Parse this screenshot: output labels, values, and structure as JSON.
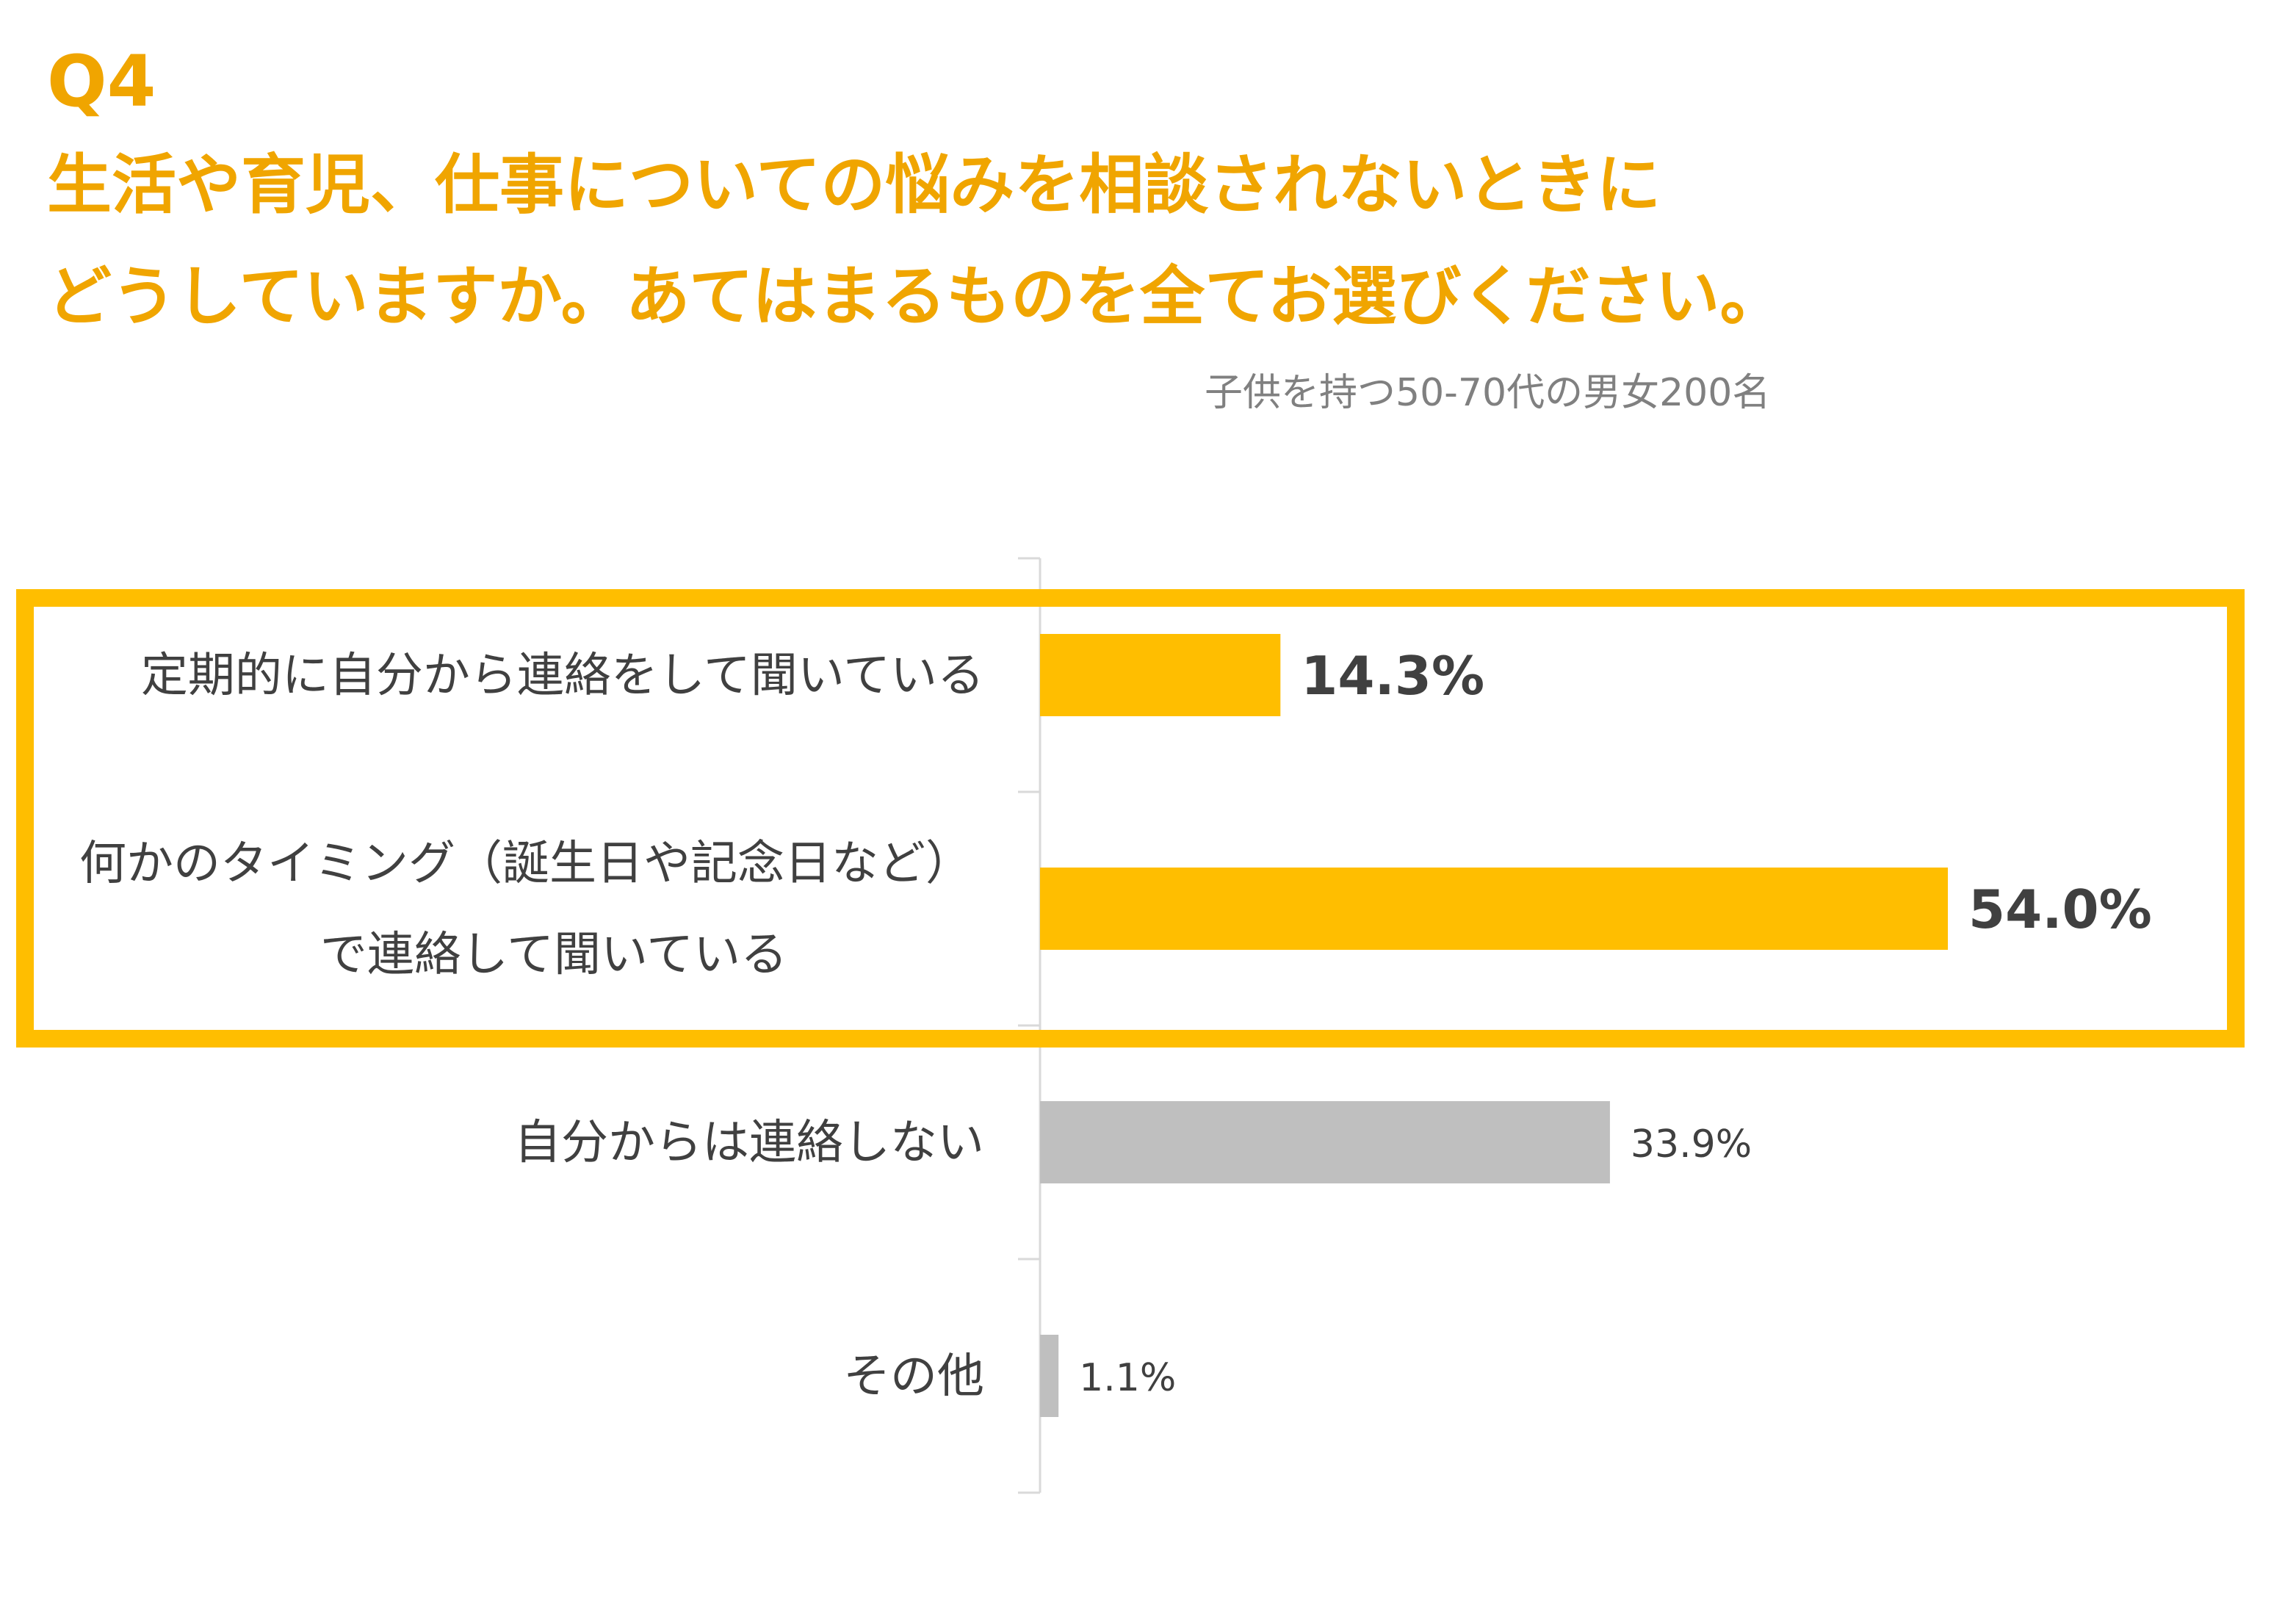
{
  "header": {
    "question_number": "Q4",
    "question_lines": [
      "生活や育児、仕事についての悩みを相談されないときに",
      "どうしていますか。あてはまるものを全てお選びください。"
    ],
    "sample_note": "子供を持つ50-70代の男女200名"
  },
  "colors": {
    "title": "#f0a500",
    "highlight_bar": "#ffbe00",
    "highlight_frame": "#ffbe00",
    "normal_bar": "#bfbfbf",
    "axis": "#d9d9d9",
    "text": "#404040",
    "note": "#808080"
  },
  "chart_data": {
    "type": "bar",
    "orientation": "horizontal",
    "categories": [
      [
        "定期的に自分から連絡をして聞いている"
      ],
      [
        "何かのタイミング（誕生日や記念日など）",
        "で連絡して聞いている"
      ],
      [
        "自分からは連絡しない"
      ],
      [
        "その他"
      ]
    ],
    "values": [
      14.3,
      54.0,
      33.9,
      1.1
    ],
    "value_labels": [
      "14.3%",
      "54.0%",
      "33.9%",
      "1.1%"
    ],
    "highlighted": [
      true,
      true,
      false,
      false
    ],
    "unit": "%",
    "xlim": [
      0,
      100
    ],
    "grid": false,
    "legend": "none"
  }
}
